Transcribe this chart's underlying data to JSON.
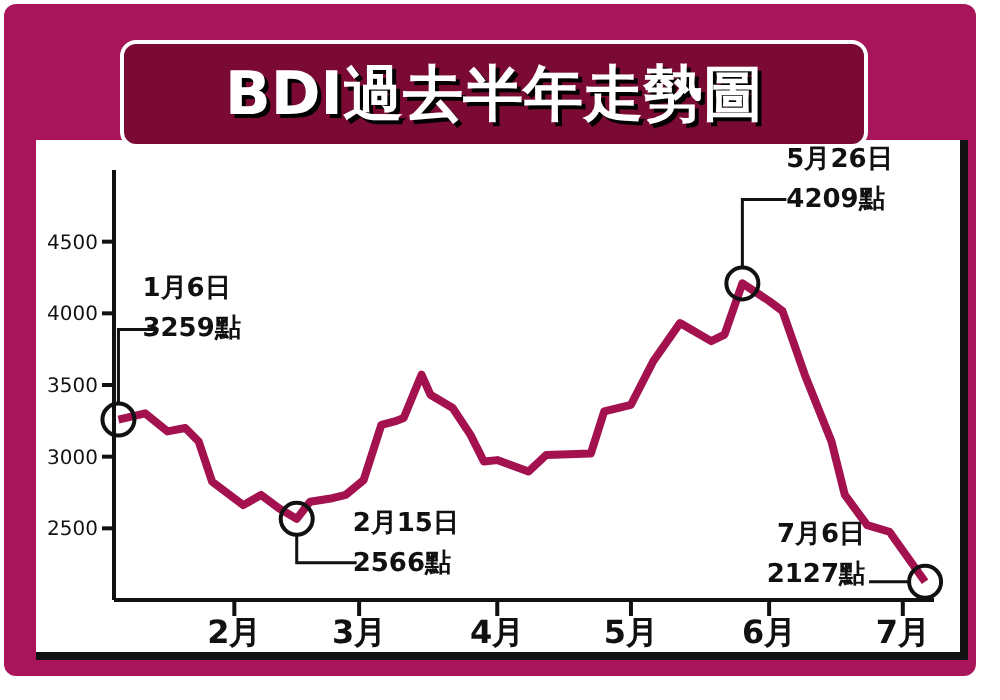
{
  "chart_data": {
    "type": "line",
    "title": "BDI過去半年走勢圖",
    "x": [
      "--01-06",
      "--01-12",
      "--01-17",
      "--01-21",
      "--01-24",
      "--01-27",
      "--02-03",
      "--02-07",
      "--02-11",
      "--02-15",
      "--02-18",
      "--02-23",
      "--02-26",
      "--03-02",
      "--03-06",
      "--03-09",
      "--03-11",
      "--03-15",
      "--03-17",
      "--03-22",
      "--03-26",
      "--03-29",
      "--04-01",
      "--04-08",
      "--04-12",
      "--04-22",
      "--04-25",
      "--05-01",
      "--05-06",
      "--05-12",
      "--05-19",
      "--05-22",
      "--05-26",
      "--06-01",
      "--06-04",
      "--06-09",
      "--06-15",
      "--06-18",
      "--06-23",
      "--06-28",
      "--07-06"
    ],
    "series": [
      {
        "color": "#a3124f",
        "values": [
          3259,
          3302,
          3176,
          3200,
          3106,
          2826,
          2662,
          2733,
          2640,
          2566,
          2686,
          2710,
          2733,
          2836,
          3222,
          3246,
          3270,
          3572,
          3432,
          3340,
          3152,
          2966,
          2976,
          2896,
          3012,
          3022,
          3316,
          3362,
          3666,
          3932,
          3806,
          3852,
          4209,
          4086,
          4016,
          3572,
          3106,
          2733,
          2522,
          2476,
          2127
        ]
      }
    ],
    "xlim": [
      "--01-05",
      "--07-08"
    ],
    "xticks": [
      {
        "value": "--02-01",
        "label": "2月"
      },
      {
        "value": "--03-01",
        "label": "3月"
      },
      {
        "value": "--04-01",
        "label": "4月"
      },
      {
        "value": "--05-01",
        "label": "5月"
      },
      {
        "value": "--06-01",
        "label": "6月"
      },
      {
        "value": "--07-01",
        "label": "7月"
      }
    ],
    "ylim": [
      2000,
      5000
    ],
    "yticks": [
      2500,
      3000,
      3500,
      4000,
      4500
    ],
    "grid": false,
    "legend": false,
    "marker": "none",
    "line_style": "solid",
    "annotations": [
      {
        "text": "1月6日\n3259點",
        "x": "--01-06",
        "y": 3259
      },
      {
        "text": "2月15日\n2566點",
        "x": "--02-15",
        "y": 2566
      },
      {
        "text": "5月26日\n4209點",
        "x": "--05-26",
        "y": 4209
      },
      {
        "text": "7月6日\n2127點",
        "x": "--07-06",
        "y": 2127
      }
    ]
  }
}
